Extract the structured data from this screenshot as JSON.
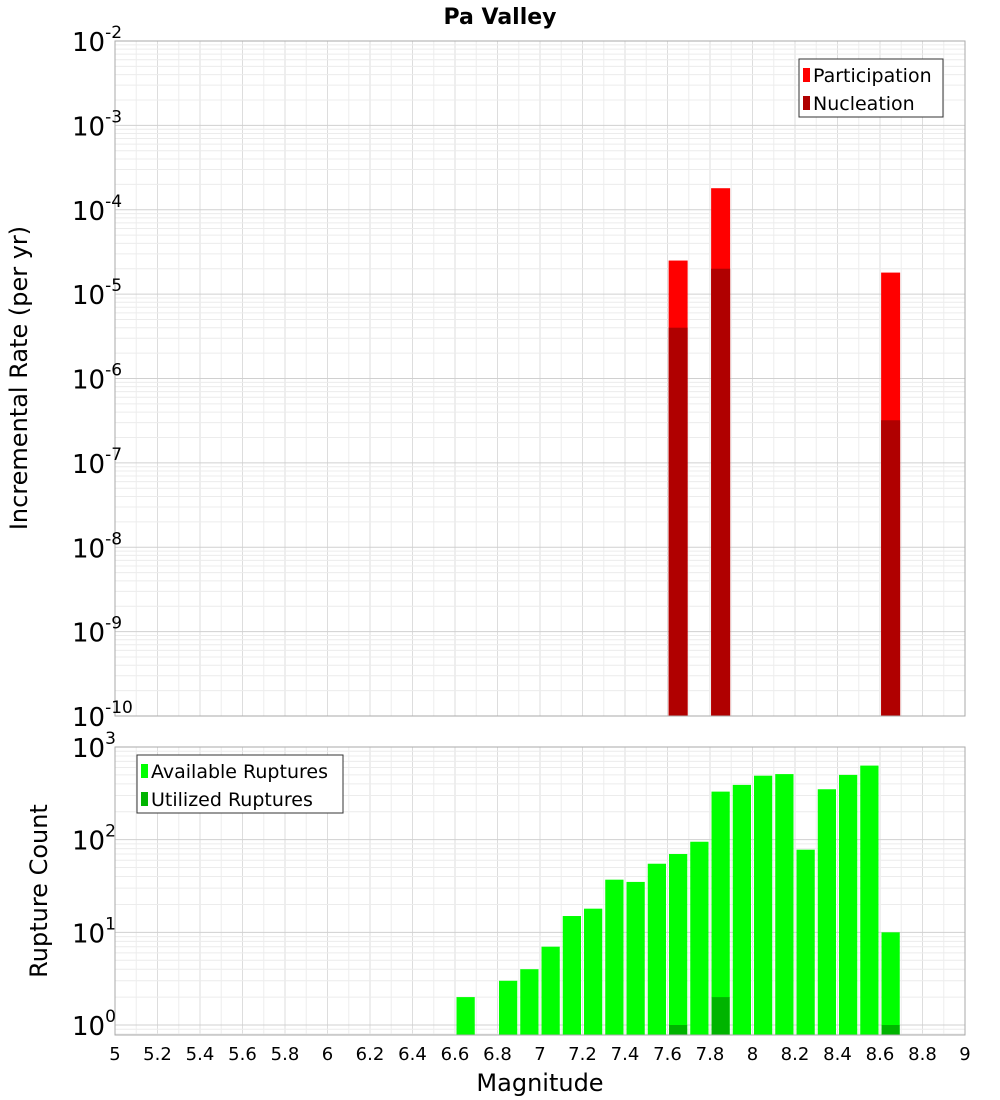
{
  "chart_data": [
    {
      "type": "bar",
      "title": "Pa Valley",
      "xlabel": "",
      "ylabel": "Incremental Rate (per yr)",
      "yscale": "log",
      "ylim": [
        1e-10,
        0.01
      ],
      "xlim": [
        5,
        9
      ],
      "y_tick_exponents": [
        "-2",
        "-3",
        "-4",
        "-5",
        "-6",
        "-7",
        "-8",
        "-9",
        "-10"
      ],
      "grid": true,
      "legend_position": "top-right",
      "x": [
        7.65,
        7.85,
        8.65
      ],
      "series": [
        {
          "name": "Participation",
          "color": "#ff0000",
          "values": [
            2.5e-05,
            0.00018,
            1.8e-05
          ]
        },
        {
          "name": "Nucleation",
          "color": "#b00000",
          "values": [
            4e-06,
            2e-05,
            3.2e-07
          ]
        }
      ]
    },
    {
      "type": "bar",
      "title": "",
      "xlabel": "Magnitude",
      "ylabel": "Rupture Count",
      "yscale": "log",
      "ylim": [
        0.78,
        1000
      ],
      "xlim": [
        5,
        9
      ],
      "y_tick_exponents": [
        "3",
        "2",
        "1",
        "0"
      ],
      "x_tick_labels": [
        "5",
        "5.2",
        "5.4",
        "5.6",
        "5.8",
        "6",
        "6.2",
        "6.4",
        "6.6",
        "6.8",
        "7",
        "7.2",
        "7.4",
        "7.6",
        "7.8",
        "8",
        "8.2",
        "8.4",
        "8.6",
        "8.8",
        "9"
      ],
      "grid": true,
      "legend_position": "top-left",
      "x": [
        6.65,
        6.85,
        6.95,
        7.05,
        7.15,
        7.25,
        7.35,
        7.45,
        7.55,
        7.65,
        7.75,
        7.85,
        7.95,
        8.05,
        8.15,
        8.25,
        8.35,
        8.45,
        8.55,
        8.65
      ],
      "series": [
        {
          "name": "Available Ruptures",
          "color": "#00ff00",
          "values": [
            2,
            3,
            4,
            7,
            15,
            18,
            37,
            35,
            55,
            70,
            95,
            330,
            390,
            490,
            510,
            78,
            350,
            500,
            630,
            10
          ]
        },
        {
          "name": "Utilized Ruptures",
          "color": "#00b400",
          "values": [
            0,
            0,
            0,
            0,
            0,
            0,
            0,
            0,
            0,
            1,
            0,
            2,
            0,
            0,
            0,
            0,
            0,
            0,
            0,
            1
          ]
        }
      ]
    }
  ]
}
